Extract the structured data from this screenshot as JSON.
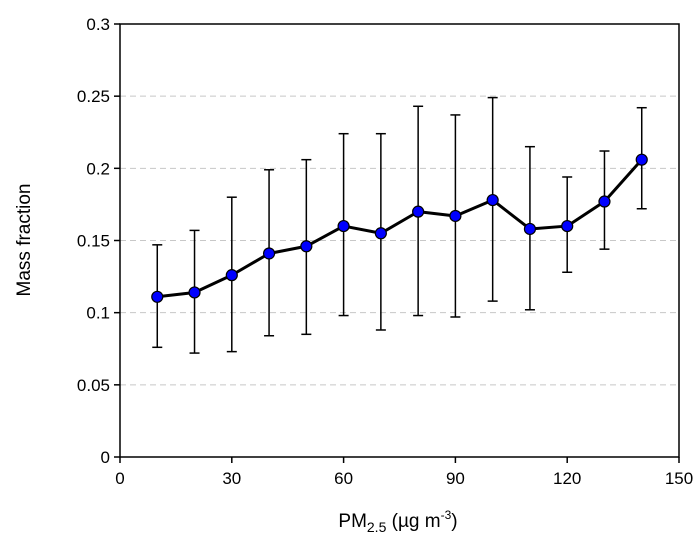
{
  "chart_data": {
    "type": "line",
    "title": "",
    "xlabel": {
      "main": "PM",
      "subscript": "2.5",
      "unit_prefix": " (µg m",
      "unit_superscript": "-3",
      "unit_suffix": ")"
    },
    "ylabel": "Mass fraction",
    "xlim": [
      0,
      150
    ],
    "ylim": [
      0,
      0.3
    ],
    "x_ticks": [
      0,
      30,
      60,
      90,
      120,
      150
    ],
    "x_tick_labels": [
      "0",
      "30",
      "60",
      "90",
      "120",
      "150"
    ],
    "y_ticks": [
      0,
      0.05,
      0.1,
      0.15,
      0.2,
      0.25,
      0.3
    ],
    "y_tick_labels": [
      "0",
      "0.05",
      "0.1",
      "0.15",
      "0.2",
      "0.25",
      "0.3"
    ],
    "grid": "horizontal dashed",
    "line_color": "#000000",
    "marker_color": "#0000ff",
    "grid_color": "#c8c8c8",
    "series": [
      {
        "x": [
          10,
          20,
          30,
          40,
          50,
          60,
          70,
          80,
          90,
          100,
          110,
          120,
          130,
          140
        ],
        "y": [
          0.111,
          0.114,
          0.126,
          0.141,
          0.146,
          0.16,
          0.155,
          0.17,
          0.167,
          0.178,
          0.158,
          0.16,
          0.177,
          0.206
        ],
        "y_lower": [
          0.076,
          0.072,
          0.073,
          0.084,
          0.085,
          0.098,
          0.088,
          0.098,
          0.097,
          0.108,
          0.102,
          0.128,
          0.144,
          0.172
        ],
        "y_upper": [
          0.147,
          0.157,
          0.18,
          0.199,
          0.206,
          0.224,
          0.224,
          0.243,
          0.237,
          0.249,
          0.215,
          0.194,
          0.212,
          0.242
        ]
      }
    ]
  }
}
